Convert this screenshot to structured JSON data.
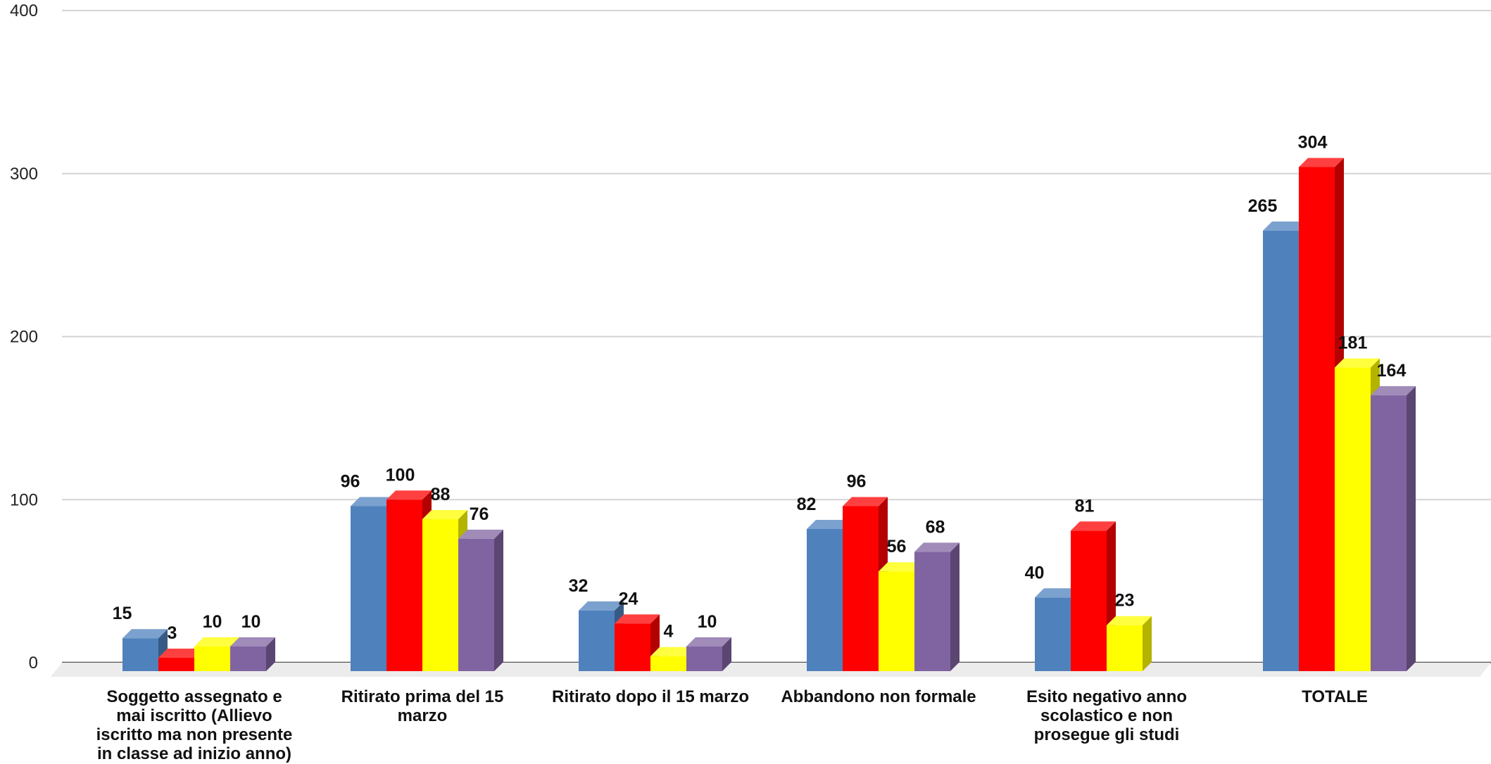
{
  "chart_data": {
    "type": "bar",
    "style": "3d-clustered-column",
    "categories": [
      "Soggetto assegnato e mai iscritto (Allievo iscritto ma non presente in classe ad inizio anno)",
      "Ritirato prima del 15 marzo",
      "Ritirato dopo il 15 marzo",
      "Abbandono non formale",
      "Esito negativo anno scolastico e non prosegue gli studi",
      "TOTALE"
    ],
    "category_lines": [
      [
        "Soggetto assegnato e",
        "mai iscritto (Allievo",
        "iscritto ma non presente",
        "in classe ad inizio anno)"
      ],
      [
        "Ritirato prima del 15",
        "marzo"
      ],
      [
        "Ritirato dopo il 15 marzo"
      ],
      [
        "Abbandono non formale"
      ],
      [
        "Esito negativo anno",
        "scolastico e non",
        "prosegue gli studi"
      ],
      [
        "TOTALE"
      ]
    ],
    "series": [
      {
        "color": "#4F81BD",
        "values": [
          15,
          96,
          32,
          82,
          40,
          265
        ]
      },
      {
        "color": "#FF0000",
        "values": [
          3,
          100,
          24,
          96,
          81,
          304
        ]
      },
      {
        "color": "#FFFF00",
        "values": [
          10,
          88,
          4,
          56,
          23,
          181
        ]
      },
      {
        "color": "#8064A2",
        "values": [
          10,
          76,
          10,
          68,
          null,
          164
        ]
      }
    ],
    "ylim": [
      0,
      400
    ],
    "yticks": [
      "0",
      "100",
      "200",
      "300",
      "400"
    ],
    "grid": true,
    "legend": "none",
    "data_labels": true,
    "title": "",
    "xlabel": "",
    "ylabel": ""
  }
}
